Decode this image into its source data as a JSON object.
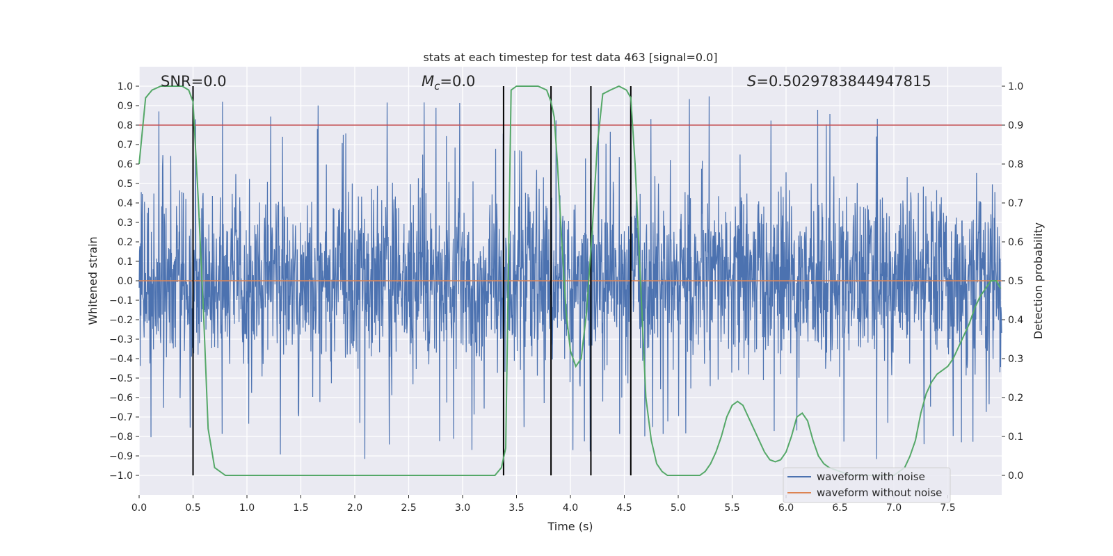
{
  "chart_data": {
    "type": "line",
    "title": "stats at each timestep for test data 463 [signal=0.0]",
    "xlabel": "Time (s)",
    "ylabel_left": "Whitened strain",
    "ylabel_right": "Detection probability",
    "xlim": [
      0,
      8
    ],
    "ylim_left": [
      -1.1,
      1.1
    ],
    "ylim_right": [
      -0.05,
      1.05
    ],
    "x_ticks": [
      "0.0",
      "0.5",
      "1.0",
      "1.5",
      "2.0",
      "2.5",
      "3.0",
      "3.5",
      "4.0",
      "4.5",
      "5.0",
      "5.5",
      "6.0",
      "6.5",
      "7.0",
      "7.5"
    ],
    "y_left_ticks": [
      "1.0",
      "0.9",
      "0.8",
      "0.7",
      "0.6",
      "0.5",
      "0.4",
      "0.3",
      "0.2",
      "0.1",
      "0.0",
      "−0.1",
      "−0.2",
      "−0.3",
      "−0.4",
      "−0.5",
      "−0.6",
      "−0.7",
      "−0.8",
      "−0.9",
      "−1.0"
    ],
    "y_right_ticks": [
      "1.0",
      "0.9",
      "0.8",
      "0.7",
      "0.6",
      "0.5",
      "0.4",
      "0.3",
      "0.2",
      "0.1",
      "0.0"
    ],
    "grid": true,
    "legend_position": "lower-right",
    "annotations": {
      "snr": "SNR=0.0",
      "mc_symbol": "M",
      "mc_sub": "c",
      "mc_value": "=0.0",
      "s_symbol": "S",
      "s_value": "=0.5029783844947815"
    },
    "threshold": {
      "axis": "right",
      "value": 0.9,
      "color": "#c44e52"
    },
    "event_markers": [
      0.5,
      3.38,
      3.82,
      4.19,
      4.56
    ],
    "series": [
      {
        "name": "waveform with noise",
        "color": "#4c72b0",
        "axis": "left",
        "kind": "noise",
        "typical_amplitude": 0.45,
        "max_amplitude": 1.0
      },
      {
        "name": "waveform without noise",
        "color": "#dd8452",
        "axis": "left",
        "kind": "flat",
        "value": 0.0
      },
      {
        "name": "",
        "color": "#55a868",
        "axis": "right",
        "x": [
          0.0,
          0.06,
          0.12,
          0.2,
          0.3,
          0.4,
          0.46,
          0.5,
          0.55,
          0.6,
          0.64,
          0.7,
          0.8,
          1.0,
          1.5,
          2.0,
          2.5,
          3.0,
          3.3,
          3.36,
          3.4,
          3.45,
          3.5,
          3.7,
          3.78,
          3.82,
          3.85,
          3.88,
          3.92,
          3.96,
          4.0,
          4.05,
          4.1,
          4.15,
          4.2,
          4.25,
          4.3,
          4.37,
          4.45,
          4.52,
          4.56,
          4.6,
          4.65,
          4.7,
          4.75,
          4.8,
          4.85,
          4.9,
          5.0,
          5.1,
          5.2,
          5.25,
          5.3,
          5.35,
          5.4,
          5.45,
          5.5,
          5.55,
          5.6,
          5.65,
          5.7,
          5.75,
          5.8,
          5.85,
          5.9,
          5.95,
          6.0,
          6.05,
          6.1,
          6.15,
          6.2,
          6.25,
          6.3,
          6.35,
          6.4,
          6.5,
          6.6,
          6.7,
          6.8,
          6.9,
          7.0,
          7.1,
          7.15,
          7.2,
          7.25,
          7.3,
          7.35,
          7.4,
          7.45,
          7.5,
          7.55,
          7.6,
          7.65,
          7.7,
          7.75,
          7.8,
          7.85,
          7.9,
          7.95,
          7.99
        ],
        "y": [
          0.8,
          0.97,
          0.99,
          1.0,
          1.0,
          1.0,
          0.99,
          0.96,
          0.7,
          0.4,
          0.12,
          0.02,
          0.0,
          0.0,
          0.0,
          0.0,
          0.0,
          0.0,
          0.0,
          0.02,
          0.07,
          0.99,
          1.0,
          1.0,
          0.99,
          0.96,
          0.92,
          0.8,
          0.6,
          0.42,
          0.32,
          0.28,
          0.3,
          0.42,
          0.62,
          0.85,
          0.98,
          0.99,
          1.0,
          0.99,
          0.97,
          0.8,
          0.5,
          0.2,
          0.09,
          0.03,
          0.01,
          0.0,
          0.0,
          0.0,
          0.0,
          0.01,
          0.03,
          0.06,
          0.1,
          0.15,
          0.18,
          0.19,
          0.18,
          0.15,
          0.12,
          0.09,
          0.06,
          0.04,
          0.035,
          0.04,
          0.06,
          0.1,
          0.15,
          0.16,
          0.14,
          0.09,
          0.05,
          0.03,
          0.02,
          0.01,
          0.0,
          0.0,
          0.0,
          0.0,
          0.0,
          0.02,
          0.05,
          0.09,
          0.16,
          0.21,
          0.24,
          0.26,
          0.27,
          0.28,
          0.3,
          0.33,
          0.36,
          0.39,
          0.43,
          0.46,
          0.48,
          0.5,
          0.5,
          0.48
        ]
      }
    ]
  }
}
